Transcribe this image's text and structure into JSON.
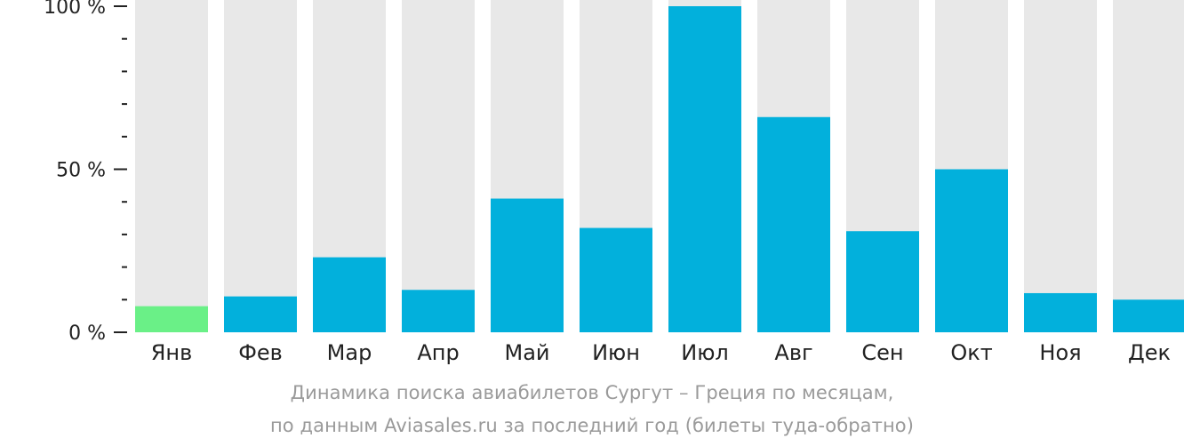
{
  "chart_data": {
    "type": "bar",
    "categories": [
      "Янв",
      "Фев",
      "Мар",
      "Апр",
      "Май",
      "Июн",
      "Июл",
      "Авг",
      "Сен",
      "Окт",
      "Ноя",
      "Дек"
    ],
    "values": [
      8,
      11,
      23,
      13,
      41,
      32,
      100,
      66,
      31,
      50,
      12,
      10
    ],
    "ylim": [
      0,
      100
    ],
    "y_ticks": [
      {
        "value": 0,
        "label": "0 %"
      },
      {
        "value": 50,
        "label": "50 %"
      },
      {
        "value": 100,
        "label": "100 %"
      }
    ],
    "y_minor_tick_step": 10,
    "highlight_index": 0,
    "colors": {
      "bar": "#02b0dc",
      "highlight": "#6af087",
      "track": "#e8e8e8",
      "axis_text": "#222222",
      "caption": "#9a9a9a"
    },
    "caption_lines": [
      "Динамика поиска авиабилетов Сургут – Греция по месяцам,",
      "по данным Aviasales.ru за последний год (билеты туда-обратно)"
    ]
  }
}
